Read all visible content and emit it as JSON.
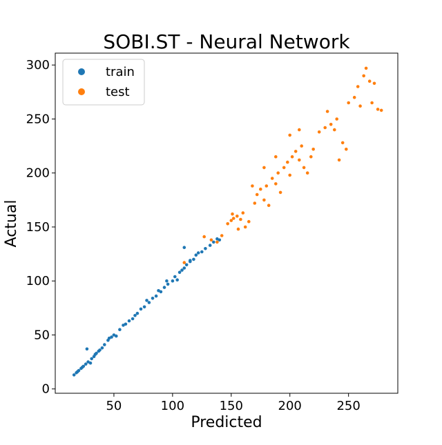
{
  "chart_data": {
    "type": "scatter",
    "title": "SOBI.ST - Neural Network",
    "xlabel": "Predicted",
    "ylabel": "Actual",
    "xlim": [
      0,
      292
    ],
    "ylim": [
      -4,
      311
    ],
    "xticks": [
      50,
      100,
      150,
      200,
      250
    ],
    "yticks": [
      0,
      50,
      100,
      150,
      200,
      250,
      300
    ],
    "grid": false,
    "legend_position": "top-left",
    "series": [
      {
        "name": "train",
        "color": "#1f77b4",
        "points": [
          [
            16,
            13
          ],
          [
            18,
            15
          ],
          [
            20,
            17
          ],
          [
            22,
            19
          ],
          [
            24,
            21
          ],
          [
            26,
            23
          ],
          [
            28,
            25
          ],
          [
            30,
            24
          ],
          [
            27,
            37
          ],
          [
            33,
            30
          ],
          [
            35,
            33
          ],
          [
            37,
            35
          ],
          [
            40,
            38
          ],
          [
            42,
            41
          ],
          [
            45,
            45
          ],
          [
            48,
            48
          ],
          [
            50,
            50
          ],
          [
            55,
            55
          ],
          [
            60,
            60
          ],
          [
            63,
            63
          ],
          [
            66,
            65
          ],
          [
            70,
            70
          ],
          [
            73,
            74
          ],
          [
            76,
            76
          ],
          [
            80,
            80
          ],
          [
            83,
            84
          ],
          [
            86,
            86
          ],
          [
            90,
            90
          ],
          [
            93,
            94
          ],
          [
            96,
            97
          ],
          [
            100,
            100
          ],
          [
            102,
            104
          ],
          [
            104,
            101
          ],
          [
            106,
            108
          ],
          [
            108,
            110
          ],
          [
            110,
            112
          ],
          [
            112,
            115
          ],
          [
            115,
            118
          ],
          [
            118,
            120
          ],
          [
            120,
            124
          ],
          [
            122,
            126
          ],
          [
            125,
            127
          ],
          [
            128,
            130
          ],
          [
            132,
            133
          ],
          [
            135,
            136
          ],
          [
            138,
            139
          ],
          [
            140,
            138
          ],
          [
            110,
            131
          ],
          [
            115,
            119
          ],
          [
            95,
            100
          ],
          [
            88,
            91
          ],
          [
            78,
            82
          ],
          [
            68,
            68
          ],
          [
            58,
            59
          ],
          [
            52,
            49
          ],
          [
            46,
            47
          ],
          [
            38,
            36
          ],
          [
            34,
            32
          ],
          [
            31,
            28
          ],
          [
            23,
            20
          ],
          [
            19,
            16
          ]
        ]
      },
      {
        "name": "test",
        "color": "#ff7f0e",
        "points": [
          [
            110,
            117
          ],
          [
            127,
            141
          ],
          [
            133,
            138
          ],
          [
            138,
            136
          ],
          [
            142,
            142
          ],
          [
            147,
            153
          ],
          [
            150,
            156
          ],
          [
            152,
            158
          ],
          [
            155,
            160
          ],
          [
            158,
            157
          ],
          [
            160,
            163
          ],
          [
            162,
            150
          ],
          [
            165,
            155
          ],
          [
            170,
            172
          ],
          [
            172,
            180
          ],
          [
            175,
            185
          ],
          [
            178,
            175
          ],
          [
            180,
            188
          ],
          [
            182,
            170
          ],
          [
            185,
            195
          ],
          [
            188,
            190
          ],
          [
            190,
            200
          ],
          [
            192,
            182
          ],
          [
            195,
            205
          ],
          [
            198,
            210
          ],
          [
            200,
            198
          ],
          [
            202,
            215
          ],
          [
            205,
            220
          ],
          [
            208,
            212
          ],
          [
            210,
            225
          ],
          [
            212,
            205
          ],
          [
            215,
            200
          ],
          [
            218,
            215
          ],
          [
            220,
            222
          ],
          [
            225,
            238
          ],
          [
            230,
            242
          ],
          [
            235,
            245
          ],
          [
            238,
            240
          ],
          [
            240,
            250
          ],
          [
            242,
            212
          ],
          [
            245,
            228
          ],
          [
            248,
            222
          ],
          [
            250,
            265
          ],
          [
            255,
            270
          ],
          [
            258,
            280
          ],
          [
            260,
            262
          ],
          [
            263,
            290
          ],
          [
            265,
            297
          ],
          [
            268,
            285
          ],
          [
            270,
            265
          ],
          [
            272,
            283
          ],
          [
            275,
            259
          ],
          [
            278,
            258
          ],
          [
            232,
            257
          ],
          [
            208,
            240
          ],
          [
            200,
            235
          ],
          [
            188,
            215
          ],
          [
            178,
            205
          ],
          [
            168,
            188
          ],
          [
            151,
            162
          ],
          [
            156,
            148
          ]
        ]
      }
    ]
  }
}
